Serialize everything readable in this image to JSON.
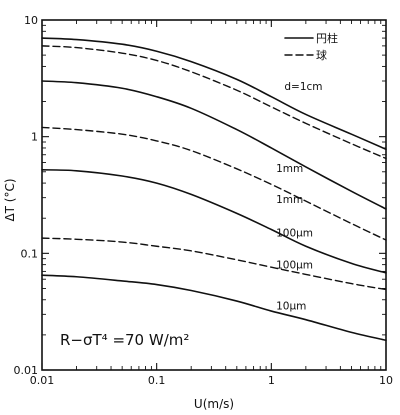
{
  "chart_data": {
    "type": "line",
    "xscale": "log",
    "yscale": "log",
    "xlim": [
      0.01,
      10
    ],
    "ylim": [
      0.01,
      10
    ],
    "xlabel": "U(m/s)",
    "ylabel": "ΔT (°C)",
    "x_tick_labels": [
      "0.01",
      "0.1",
      "1",
      "10"
    ],
    "y_tick_labels": [
      "0.01",
      "0.1",
      "1",
      "10"
    ],
    "legend": [
      {
        "label": "円柱",
        "style": "solid"
      },
      {
        "label": "球",
        "style": "dashed"
      }
    ],
    "annotation": "R−σT⁴ =70 W/m²",
    "x": [
      0.01,
      0.02,
      0.05,
      0.1,
      0.2,
      0.5,
      1,
      2,
      5,
      10
    ],
    "series": [
      {
        "label_text": "d=1cm",
        "style": "solid",
        "values": [
          7.0,
          6.8,
          6.2,
          5.4,
          4.4,
          3.1,
          2.2,
          1.55,
          1.05,
          0.78
        ]
      },
      {
        "style": "dashed",
        "values": [
          6.0,
          5.8,
          5.2,
          4.5,
          3.6,
          2.5,
          1.8,
          1.3,
          0.87,
          0.65
        ]
      },
      {
        "label_text": "1mm",
        "style": "solid",
        "values": [
          3.0,
          2.9,
          2.6,
          2.2,
          1.75,
          1.15,
          0.8,
          0.55,
          0.34,
          0.24
        ]
      },
      {
        "label_text": "1mm",
        "style": "dashed",
        "values": [
          1.2,
          1.15,
          1.05,
          0.92,
          0.76,
          0.53,
          0.39,
          0.28,
          0.18,
          0.13
        ]
      },
      {
        "label_text": "100μm",
        "style": "solid",
        "values": [
          0.52,
          0.51,
          0.46,
          0.4,
          0.32,
          0.22,
          0.16,
          0.115,
          0.082,
          0.068
        ]
      },
      {
        "label_text": "100μm",
        "style": "dashed",
        "values": [
          0.135,
          0.132,
          0.125,
          0.115,
          0.105,
          0.088,
          0.076,
          0.066,
          0.055,
          0.049
        ]
      },
      {
        "label_text": "10μm",
        "style": "solid",
        "values": [
          0.065,
          0.063,
          0.058,
          0.054,
          0.048,
          0.039,
          0.032,
          0.027,
          0.021,
          0.018
        ]
      }
    ]
  }
}
